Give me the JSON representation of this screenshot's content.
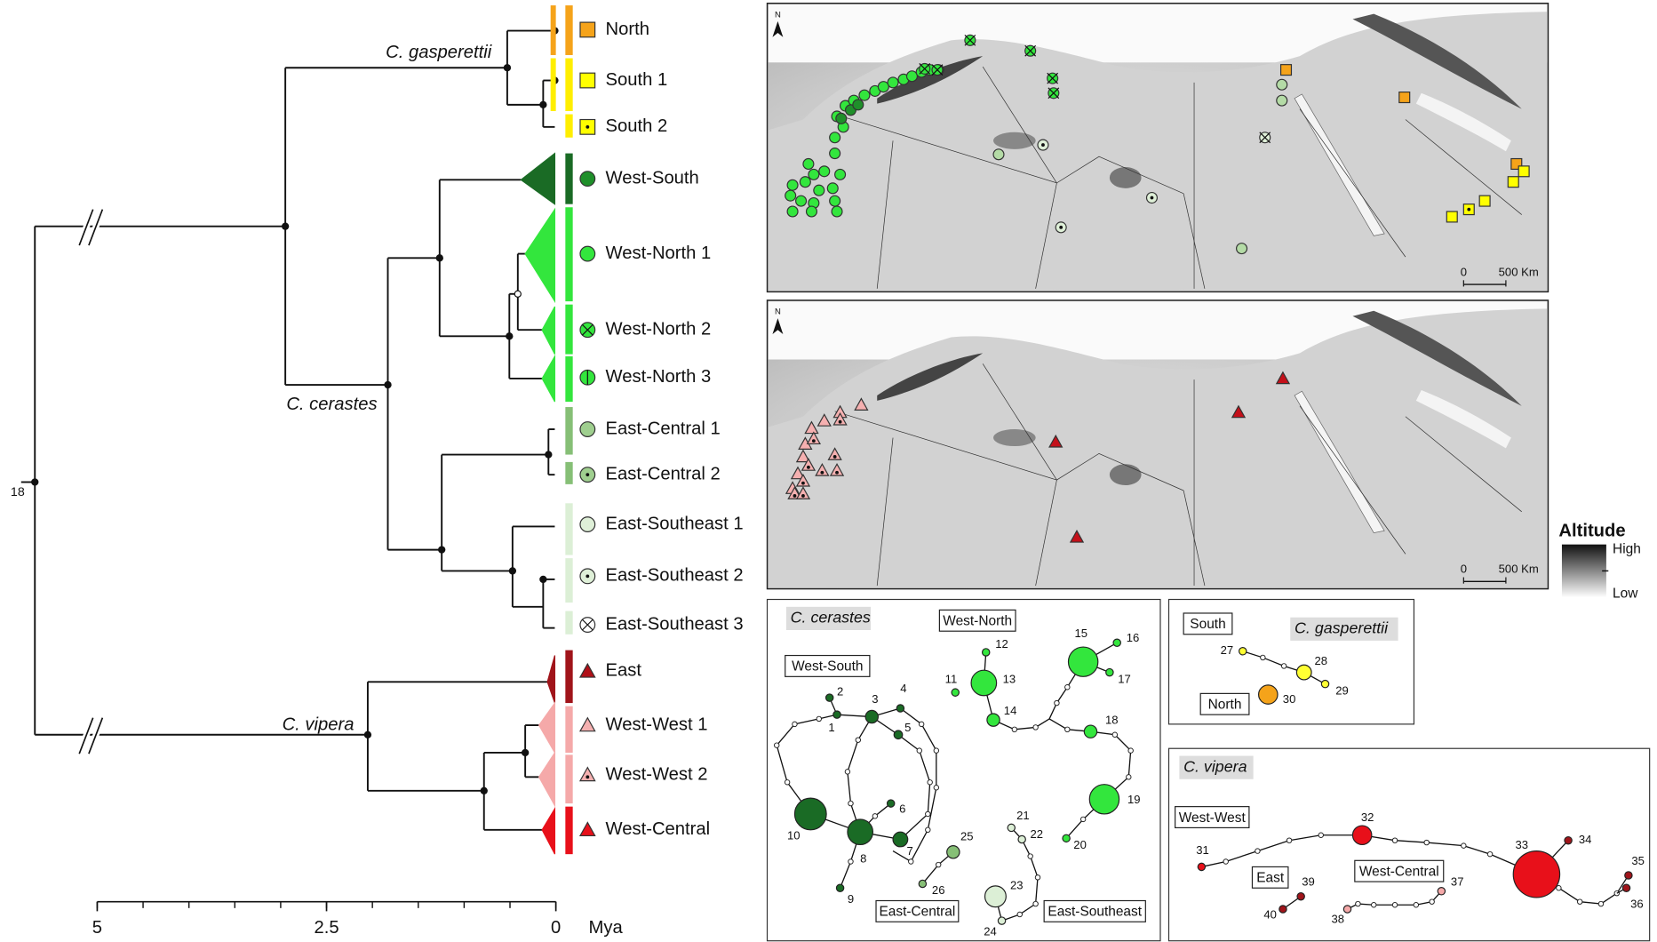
{
  "tree": {
    "root_label": "18",
    "clades": [
      "C. gasperettii",
      "C. cerastes",
      "C. vipera"
    ],
    "lineages": [
      "North",
      "South 1",
      "South 2",
      "West-South",
      "West-North 1",
      "West-North 2",
      "West-North 3",
      "East-Central 1",
      "East-Central 2",
      "East-Southeast 1",
      "East-Southeast 2",
      "East-Southeast 3",
      "East",
      "West-West 1",
      "West-West 2",
      "West-Central"
    ],
    "axis": {
      "ticks": [
        5,
        2.5,
        0
      ],
      "unit": "Mya"
    }
  },
  "maps": [
    {
      "north": "N",
      "scale_start": "0",
      "scale_end": "500 Km"
    },
    {
      "north": "N",
      "scale_start": "0",
      "scale_end": "500 Km"
    }
  ],
  "altitude_legend": {
    "title": "Altitude",
    "high": "High",
    "low": "Low"
  },
  "networks": {
    "cerastes": {
      "title": "C. cerastes",
      "groups": [
        "West-North",
        "West-South",
        "East-Central",
        "East-Southeast"
      ]
    },
    "gasperettii": {
      "title": "C. gasperettii",
      "groups": [
        "South",
        "North"
      ]
    },
    "vipera": {
      "title": "C. vipera",
      "groups": [
        "West-West",
        "East",
        "West-Central"
      ]
    },
    "haplotypes": [
      1,
      2,
      3,
      4,
      5,
      6,
      7,
      8,
      9,
      10,
      11,
      12,
      13,
      14,
      15,
      16,
      17,
      18,
      19,
      20,
      21,
      22,
      23,
      24,
      25,
      26,
      27,
      28,
      29,
      30,
      31,
      32,
      33,
      34,
      35,
      36,
      37,
      38,
      39,
      40
    ]
  }
}
